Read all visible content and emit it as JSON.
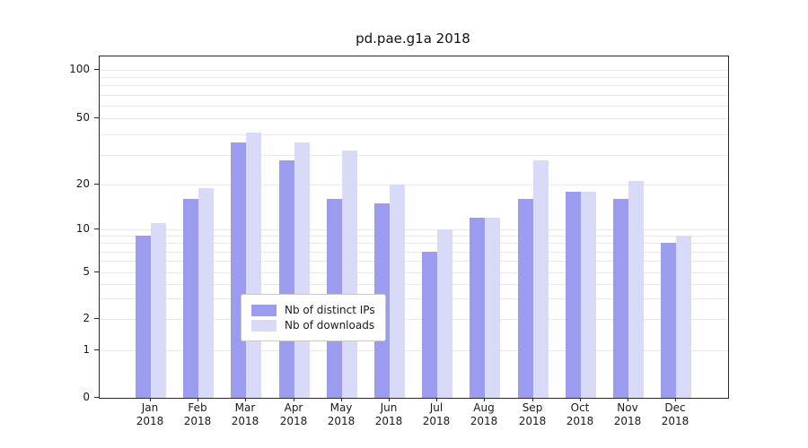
{
  "chart_data": {
    "type": "bar",
    "title": "pd.pae.g1a 2018",
    "yscale": "symlog",
    "ylim": [
      0,
      120
    ],
    "grid": true,
    "legend_position": "lower center",
    "categories": [
      {
        "line1": "Jan",
        "line2": "2018"
      },
      {
        "line1": "Feb",
        "line2": "2018"
      },
      {
        "line1": "Mar",
        "line2": "2018"
      },
      {
        "line1": "Apr",
        "line2": "2018"
      },
      {
        "line1": "May",
        "line2": "2018"
      },
      {
        "line1": "Jun",
        "line2": "2018"
      },
      {
        "line1": "Jul",
        "line2": "2018"
      },
      {
        "line1": "Aug",
        "line2": "2018"
      },
      {
        "line1": "Sep",
        "line2": "2018"
      },
      {
        "line1": "Oct",
        "line2": "2018"
      },
      {
        "line1": "Nov",
        "line2": "2018"
      },
      {
        "line1": "Dec",
        "line2": "2018"
      }
    ],
    "yticks": [
      {
        "value": 100,
        "label": "100"
      },
      {
        "value": 50,
        "label": "50"
      },
      {
        "value": 20,
        "label": "20"
      },
      {
        "value": 10,
        "label": "10"
      },
      {
        "value": 5,
        "label": "5"
      },
      {
        "value": 2,
        "label": "2"
      },
      {
        "value": 1,
        "label": "1"
      },
      {
        "value": 0,
        "label": "0"
      }
    ],
    "gridline_values": [
      1,
      2,
      3,
      4,
      5,
      6,
      7,
      8,
      9,
      10,
      20,
      30,
      40,
      50,
      60,
      70,
      80,
      90,
      100
    ],
    "series": [
      {
        "name": "Nb of distinct IPs",
        "color": "#9b9bef",
        "values": [
          9,
          16,
          36,
          28,
          16,
          15,
          7,
          12,
          16,
          18,
          16,
          8
        ]
      },
      {
        "name": "Nb of downloads",
        "color": "#d9d9f8",
        "values": [
          11,
          19,
          41,
          36,
          32,
          20,
          10,
          12,
          28,
          18,
          21,
          9
        ]
      }
    ]
  }
}
